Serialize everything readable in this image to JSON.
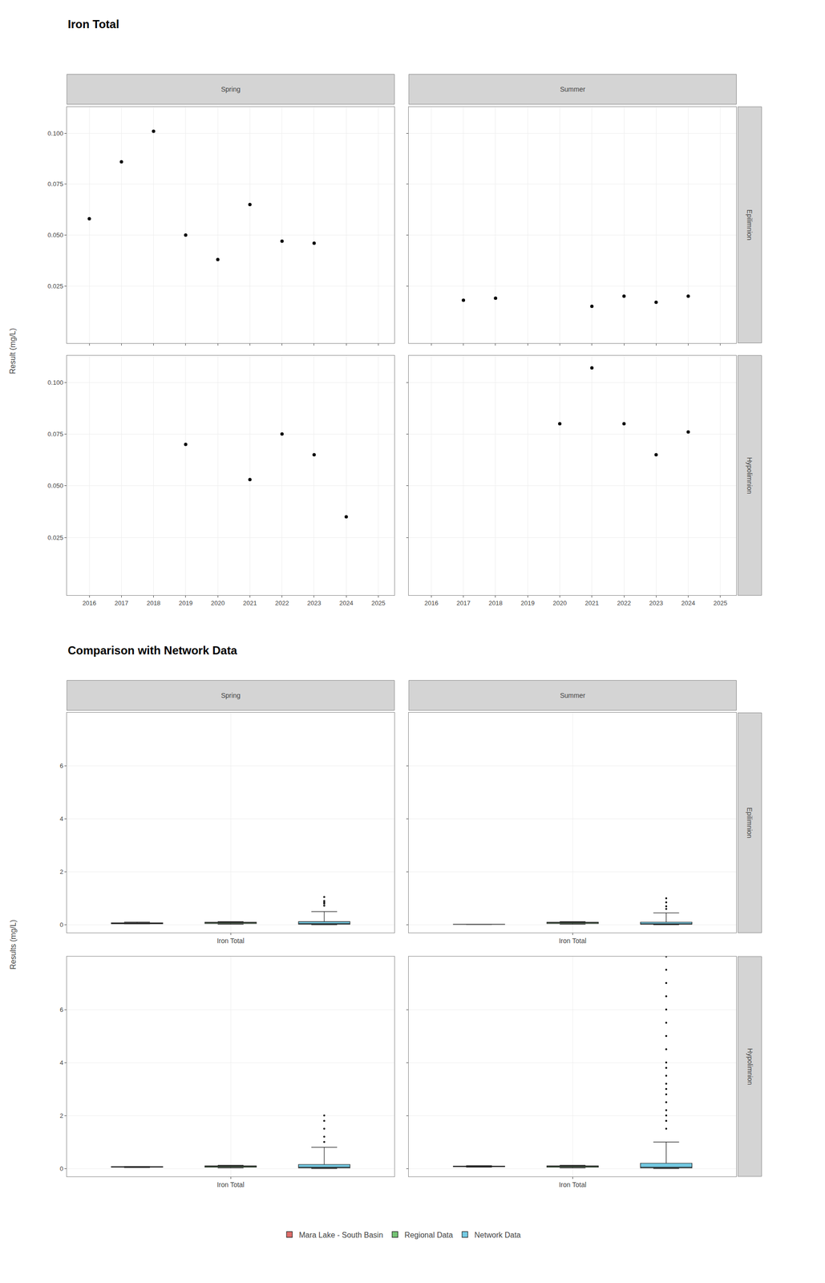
{
  "chart_data": [
    {
      "type": "scatter",
      "title": "Iron Total",
      "ylabel": "Result (mg/L)",
      "color": "#000000",
      "marker": "circle",
      "grid": true,
      "xlim": [
        2015.3,
        2025.5
      ],
      "xticks": [
        2016,
        2017,
        2018,
        2019,
        2020,
        2021,
        2022,
        2023,
        2024,
        2025
      ],
      "ylim": [
        -0.003,
        0.113
      ],
      "yticks": [
        0.025,
        {
          "value": 0.05,
          "label": "0.050"
        },
        0.075,
        {
          "value": 0.1,
          "label": "0.100"
        }
      ],
      "panels": [
        {
          "column": "Spring",
          "row": "Epilimnion",
          "x": [
            2016,
            2017,
            2018,
            2019,
            2020,
            2021,
            2022,
            2023,
            2024
          ],
          "values": [
            0.058,
            0.086,
            0.101,
            0.05,
            0.038,
            0.065,
            0.047,
            0.046,
            null
          ]
        },
        {
          "column": "Summer",
          "row": "Epilimnion",
          "x": [
            2017,
            2018,
            2019,
            2020,
            2021,
            2022,
            2023,
            2024
          ],
          "values": [
            0.018,
            0.019,
            null,
            null,
            0.015,
            0.02,
            0.017,
            0.02
          ]
        },
        {
          "column": "Spring",
          "row": "Hypolimnion",
          "x": [
            2019,
            2021,
            2022,
            2023,
            2024
          ],
          "values": [
            0.07,
            0.053,
            0.075,
            0.065,
            0.035
          ]
        },
        {
          "column": "Summer",
          "row": "Hypolimnion",
          "x": [
            2020,
            2021,
            2022,
            2023,
            2024
          ],
          "values": [
            0.08,
            0.107,
            0.08,
            0.065,
            0.076
          ]
        }
      ]
    },
    {
      "type": "box",
      "title": "Comparison with Network Data",
      "ylabel": "Results (mg/L)",
      "categories": [
        "Iron Total"
      ],
      "grid": true,
      "legend": "bottom",
      "ylim": [
        -0.3,
        8.0
      ],
      "yticks": [
        0,
        2,
        4,
        6
      ],
      "series": [
        {
          "name": "Mara Lake - South Basin",
          "color": "#d9534f"
        },
        {
          "name": "Regional Data",
          "color": "#5cb85c"
        },
        {
          "name": "Network Data",
          "color": "#5bc0de"
        }
      ],
      "panels": [
        {
          "column": "Spring",
          "row": "Epilimnion",
          "stats": [
            {
              "med": 0.058,
              "q1": 0.04,
              "q3": 0.075,
              "wlo": 0.035,
              "whi": 0.101,
              "outliers": []
            },
            {
              "med": 0.08,
              "q1": 0.05,
              "q3": 0.1,
              "wlo": 0.02,
              "whi": 0.12,
              "outliers": []
            },
            {
              "med": 0.05,
              "q1": 0.02,
              "q3": 0.12,
              "wlo": 0.001,
              "whi": 0.5,
              "outliers": [
                0.72,
                0.8,
                0.85,
                0.9,
                1.05
              ]
            }
          ]
        },
        {
          "column": "Summer",
          "row": "Epilimnion",
          "stats": [
            {
              "med": 0.018,
              "q1": 0.015,
              "q3": 0.02,
              "wlo": 0.013,
              "whi": 0.022,
              "outliers": []
            },
            {
              "med": 0.08,
              "q1": 0.05,
              "q3": 0.1,
              "wlo": 0.02,
              "whi": 0.12,
              "outliers": []
            },
            {
              "med": 0.04,
              "q1": 0.02,
              "q3": 0.1,
              "wlo": 0.001,
              "whi": 0.45,
              "outliers": [
                0.6,
                0.7,
                0.85,
                1.0
              ]
            }
          ]
        },
        {
          "column": "Spring",
          "row": "Hypolimnion",
          "stats": [
            {
              "med": 0.063,
              "q1": 0.048,
              "q3": 0.072,
              "wlo": 0.035,
              "whi": 0.075,
              "outliers": []
            },
            {
              "med": 0.08,
              "q1": 0.05,
              "q3": 0.1,
              "wlo": 0.02,
              "whi": 0.12,
              "outliers": []
            },
            {
              "med": 0.05,
              "q1": 0.02,
              "q3": 0.15,
              "wlo": 0.001,
              "whi": 0.8,
              "outliers": [
                1.0,
                1.2,
                1.5,
                1.8,
                2.0
              ]
            }
          ]
        },
        {
          "column": "Summer",
          "row": "Hypolimnion",
          "stats": [
            {
              "med": 0.08,
              "q1": 0.065,
              "q3": 0.09,
              "wlo": 0.05,
              "whi": 0.107,
              "outliers": []
            },
            {
              "med": 0.08,
              "q1": 0.05,
              "q3": 0.1,
              "wlo": 0.02,
              "whi": 0.12,
              "outliers": []
            },
            {
              "med": 0.05,
              "q1": 0.02,
              "q3": 0.2,
              "wlo": 0.001,
              "whi": 1.0,
              "outliers": [
                1.5,
                1.8,
                2.0,
                2.2,
                2.5,
                2.8,
                3.0,
                3.2,
                3.5,
                3.8,
                4.0,
                4.5,
                5.0,
                5.5,
                6.0,
                6.5,
                7.0,
                7.5,
                8.0
              ]
            }
          ]
        }
      ]
    }
  ]
}
